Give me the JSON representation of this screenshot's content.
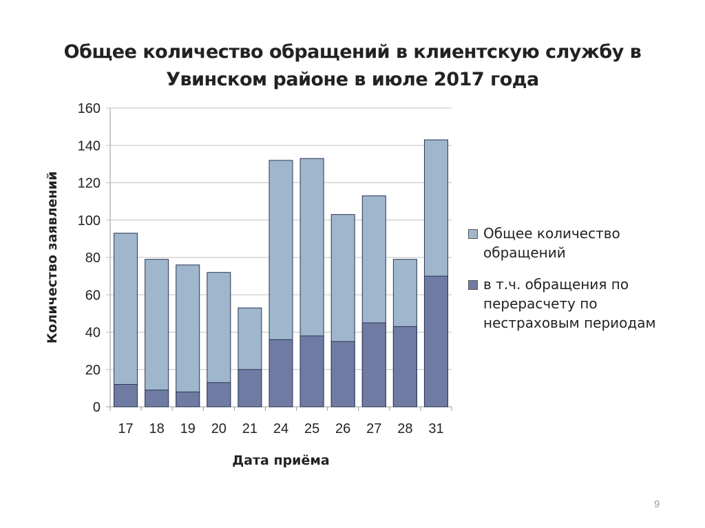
{
  "chart_data": {
    "type": "bar",
    "bar_mode": "overlapped",
    "title": "Общее количество обращений в клиентскую службу в Увинском районе в июле 2017 года",
    "xlabel": "Дата приёма",
    "ylabel": "Количество заявлений",
    "ylim": [
      0,
      160
    ],
    "yticks": [
      0,
      20,
      40,
      60,
      80,
      100,
      120,
      140,
      160
    ],
    "grid": true,
    "legend_position": "right",
    "categories": [
      "17",
      "18",
      "19",
      "20",
      "21",
      "24",
      "25",
      "26",
      "27",
      "28",
      "31"
    ],
    "series": [
      {
        "name": "Общее количество обращений",
        "color": "#9fb6cd",
        "values": [
          93,
          79,
          76,
          72,
          53,
          132,
          133,
          103,
          113,
          79,
          143
        ]
      },
      {
        "name": "в т.ч. обращения по перерасчету по нестраховым периодам",
        "color": "#6f7ba2",
        "values": [
          12,
          9,
          8,
          13,
          20,
          36,
          38,
          35,
          45,
          43,
          70
        ]
      }
    ]
  },
  "page_number": "9"
}
